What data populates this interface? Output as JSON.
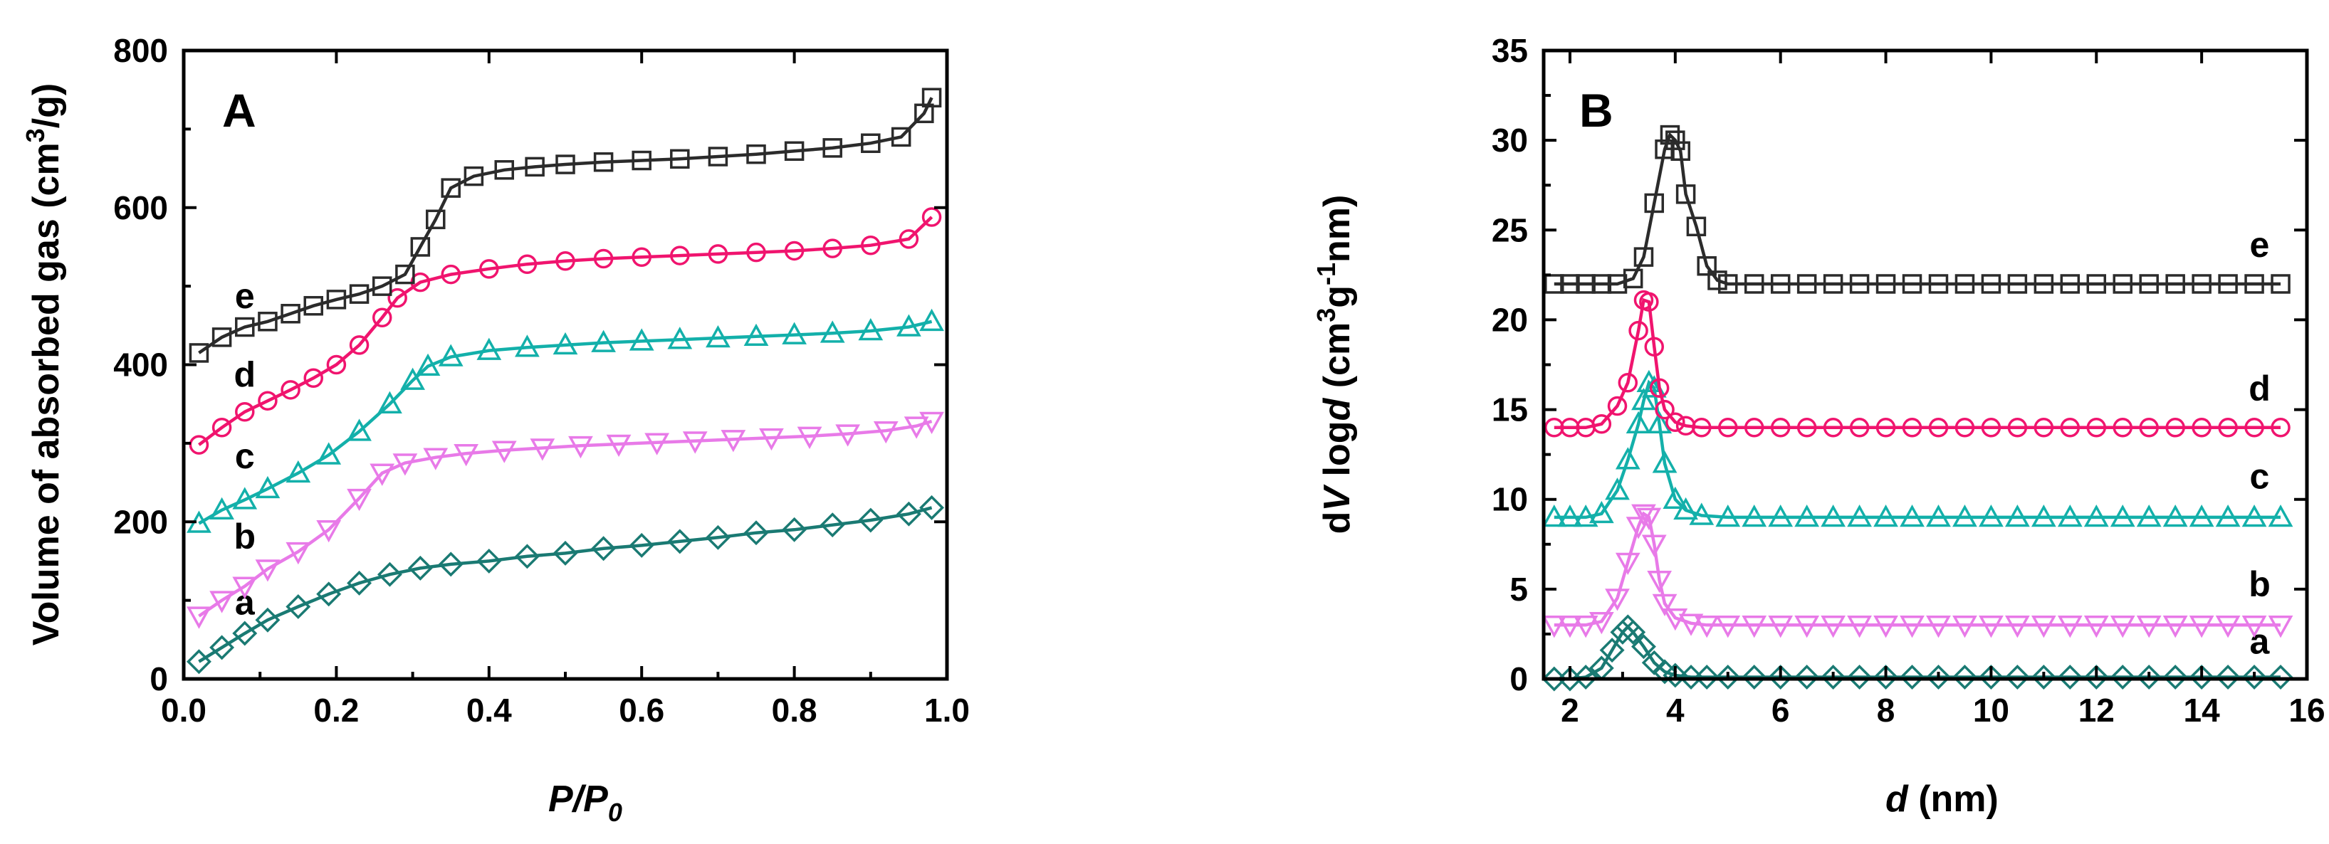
{
  "chart_data": [
    {
      "id": "A",
      "type": "scatter",
      "panel_label": "A",
      "xlabel": "P/P0",
      "xlabel_main": "P/P",
      "xlabel_sub": "0",
      "ylabel": "Volume of absorbed gas (cm3/g)",
      "ylabel_pre": "Volume of absorbed gas (cm",
      "ylabel_sup": "3",
      "ylabel_post": "/g)",
      "xlim": [
        0.0,
        1.0
      ],
      "ylim": [
        0,
        800
      ],
      "xticks": [
        0.0,
        0.2,
        0.4,
        0.6,
        0.8,
        1.0
      ],
      "xtick_labels": [
        "0.0",
        "0.2",
        "0.4",
        "0.6",
        "0.8",
        "1.0"
      ],
      "yticks": [
        0,
        200,
        400,
        600,
        800
      ],
      "ytick_labels": [
        "0",
        "200",
        "400",
        "600",
        "800"
      ],
      "series": [
        {
          "name": "a",
          "label": "a",
          "color": "#1a7a73",
          "marker": "diamond",
          "x": [
            0.02,
            0.05,
            0.08,
            0.11,
            0.15,
            0.19,
            0.23,
            0.27,
            0.31,
            0.35,
            0.4,
            0.45,
            0.5,
            0.55,
            0.6,
            0.65,
            0.7,
            0.75,
            0.8,
            0.85,
            0.9,
            0.95,
            0.98
          ],
          "y": [
            22,
            40,
            58,
            75,
            92,
            108,
            122,
            133,
            141,
            146,
            150,
            156,
            160,
            166,
            170,
            175,
            180,
            186,
            190,
            196,
            202,
            210,
            218
          ],
          "label_at": [
            0.08,
            82
          ]
        },
        {
          "name": "b",
          "label": "b",
          "color": "#e87ae8",
          "marker": "triangle-down",
          "x": [
            0.02,
            0.05,
            0.08,
            0.11,
            0.15,
            0.19,
            0.23,
            0.26,
            0.29,
            0.33,
            0.37,
            0.42,
            0.47,
            0.52,
            0.57,
            0.62,
            0.67,
            0.72,
            0.77,
            0.82,
            0.87,
            0.92,
            0.96,
            0.98
          ],
          "y": [
            80,
            100,
            118,
            140,
            162,
            190,
            230,
            262,
            275,
            282,
            287,
            291,
            294,
            297,
            299,
            301,
            303,
            305,
            307,
            309,
            312,
            316,
            322,
            328
          ],
          "label_at": [
            0.08,
            166
          ]
        },
        {
          "name": "c",
          "label": "c",
          "color": "#13b0aa",
          "marker": "triangle-up",
          "x": [
            0.02,
            0.05,
            0.08,
            0.11,
            0.15,
            0.19,
            0.23,
            0.27,
            0.3,
            0.32,
            0.35,
            0.4,
            0.45,
            0.5,
            0.55,
            0.6,
            0.65,
            0.7,
            0.75,
            0.8,
            0.85,
            0.9,
            0.95,
            0.98
          ],
          "y": [
            198,
            215,
            228,
            242,
            262,
            285,
            315,
            350,
            380,
            398,
            410,
            418,
            422,
            425,
            428,
            430,
            432,
            434,
            436,
            438,
            440,
            443,
            448,
            455
          ],
          "label_at": [
            0.08,
            268
          ]
        },
        {
          "name": "d",
          "label": "d",
          "color": "#f0146e",
          "marker": "circle",
          "x": [
            0.02,
            0.05,
            0.08,
            0.11,
            0.14,
            0.17,
            0.2,
            0.23,
            0.26,
            0.28,
            0.31,
            0.35,
            0.4,
            0.45,
            0.5,
            0.55,
            0.6,
            0.65,
            0.7,
            0.75,
            0.8,
            0.85,
            0.9,
            0.95,
            0.98
          ],
          "y": [
            298,
            320,
            340,
            354,
            368,
            383,
            400,
            425,
            460,
            485,
            505,
            515,
            522,
            528,
            532,
            535,
            537,
            539,
            541,
            543,
            545,
            548,
            552,
            560,
            588
          ],
          "label_at": [
            0.08,
            372
          ]
        },
        {
          "name": "e",
          "label": "e",
          "color": "#2b2b2b",
          "marker": "square",
          "x": [
            0.02,
            0.05,
            0.08,
            0.11,
            0.14,
            0.17,
            0.2,
            0.23,
            0.26,
            0.29,
            0.31,
            0.33,
            0.35,
            0.38,
            0.42,
            0.46,
            0.5,
            0.55,
            0.6,
            0.65,
            0.7,
            0.75,
            0.8,
            0.85,
            0.9,
            0.94,
            0.97,
            0.98
          ],
          "y": [
            415,
            435,
            448,
            455,
            465,
            475,
            483,
            490,
            500,
            515,
            550,
            585,
            625,
            640,
            648,
            652,
            655,
            658,
            660,
            662,
            665,
            668,
            672,
            676,
            682,
            690,
            720,
            740
          ],
          "label_at": [
            0.08,
            472
          ]
        }
      ]
    },
    {
      "id": "B",
      "type": "line",
      "panel_label": "B",
      "xlabel": "d (nm)",
      "xlabel_main": "d",
      "xlabel_post": " (nm)",
      "ylabel": "dV logd (cm3g-1nm)",
      "ylabel_d": "d",
      "ylabel_V": "V",
      "ylabel_log": " log",
      "ylabel_d2": "d",
      "ylabel_paren": " (cm",
      "ylabel_sup3": "3",
      "ylabel_g": "g",
      "ylabel_supm1": "-1",
      "ylabel_nm": "nm)",
      "xlim": [
        1.5,
        16
      ],
      "ylim": [
        0,
        35
      ],
      "xticks": [
        2,
        4,
        6,
        8,
        10,
        12,
        14,
        16
      ],
      "xtick_labels": [
        "2",
        "4",
        "6",
        "8",
        "10",
        "12",
        "14",
        "16"
      ],
      "yticks": [
        0,
        5,
        10,
        15,
        20,
        25,
        30,
        35
      ],
      "ytick_labels": [
        "0",
        "5",
        "10",
        "15",
        "20",
        "25",
        "30",
        "35"
      ],
      "series": [
        {
          "name": "a",
          "label": "a",
          "color": "#1a7a73",
          "marker": "diamond",
          "x": [
            1.7,
            2.0,
            2.3,
            2.6,
            2.8,
            3.0,
            3.1,
            3.2,
            3.4,
            3.6,
            3.8,
            4.0,
            4.3,
            4.6,
            5.0,
            5.5,
            6.0,
            6.5,
            7.0,
            7.5,
            8.0,
            8.5,
            9.0,
            9.5,
            10.0,
            10.5,
            11.0,
            11.5,
            12.0,
            12.5,
            13.0,
            13.5,
            14.0,
            14.5,
            15.0,
            15.5
          ],
          "y": [
            0,
            0,
            0.1,
            0.6,
            1.6,
            2.6,
            2.9,
            2.6,
            1.8,
            0.9,
            0.4,
            0.2,
            0.1,
            0.1,
            0.1,
            0.1,
            0.1,
            0.1,
            0.1,
            0.1,
            0.1,
            0.1,
            0.1,
            0.1,
            0.1,
            0.1,
            0.1,
            0.1,
            0.1,
            0.1,
            0.1,
            0.1,
            0.1,
            0.1,
            0.1,
            0.1
          ],
          "label_at": [
            15.1,
            1.4
          ]
        },
        {
          "name": "b",
          "label": "b",
          "color": "#e87ae8",
          "marker": "triangle-down",
          "x": [
            1.7,
            2.0,
            2.3,
            2.6,
            2.9,
            3.1,
            3.3,
            3.4,
            3.5,
            3.6,
            3.7,
            3.8,
            4.0,
            4.3,
            4.6,
            5.0,
            5.5,
            6.0,
            6.5,
            7.0,
            7.5,
            8.0,
            8.5,
            9.0,
            9.5,
            10.0,
            10.5,
            11.0,
            11.5,
            12.0,
            12.5,
            13.0,
            13.5,
            14.0,
            14.5,
            15.0,
            15.5
          ],
          "y": [
            3,
            3,
            3,
            3.2,
            4.5,
            6.5,
            8.5,
            9.2,
            9.0,
            7.5,
            5.5,
            4.2,
            3.4,
            3.1,
            3,
            3,
            3,
            3,
            3,
            3,
            3,
            3,
            3,
            3,
            3,
            3,
            3,
            3,
            3,
            3,
            3,
            3,
            3,
            3,
            3,
            3,
            3
          ],
          "label_at": [
            15.1,
            4.6
          ]
        },
        {
          "name": "c",
          "label": "c",
          "color": "#13b0aa",
          "marker": "triangle-up",
          "x": [
            1.7,
            2.0,
            2.3,
            2.6,
            2.9,
            3.1,
            3.3,
            3.4,
            3.5,
            3.6,
            3.7,
            3.8,
            4.0,
            4.2,
            4.5,
            5.0,
            5.5,
            6.0,
            6.5,
            7.0,
            7.5,
            8.0,
            8.5,
            9.0,
            9.5,
            10.0,
            10.5,
            11.0,
            11.5,
            12.0,
            12.5,
            13.0,
            13.5,
            14.0,
            14.5,
            15.0,
            15.5
          ],
          "y": [
            9,
            9,
            9,
            9.2,
            10.5,
            12.2,
            14.2,
            15.5,
            16.5,
            16.2,
            14.2,
            12.0,
            10.0,
            9.4,
            9.1,
            9,
            9,
            9,
            9,
            9,
            9,
            9,
            9,
            9,
            9,
            9,
            9,
            9,
            9,
            9,
            9,
            9,
            9,
            9,
            9,
            9,
            9
          ],
          "label_at": [
            15.1,
            10.6
          ]
        },
        {
          "name": "d",
          "label": "d",
          "color": "#f0146e",
          "marker": "circle",
          "x": [
            1.7,
            2.0,
            2.3,
            2.6,
            2.9,
            3.1,
            3.3,
            3.4,
            3.5,
            3.6,
            3.7,
            3.8,
            4.0,
            4.2,
            4.5,
            5.0,
            5.5,
            6.0,
            6.5,
            7.0,
            7.5,
            8.0,
            8.5,
            9.0,
            9.5,
            10.0,
            10.5,
            11.0,
            11.5,
            12.0,
            12.5,
            13.0,
            13.5,
            14.0,
            14.5,
            15.0,
            15.5
          ],
          "y": [
            14,
            14,
            14,
            14.2,
            15.2,
            16.5,
            19.4,
            21.1,
            21.0,
            18.5,
            16.2,
            15.0,
            14.3,
            14.1,
            14,
            14,
            14,
            14,
            14,
            14,
            14,
            14,
            14,
            14,
            14,
            14,
            14,
            14,
            14,
            14,
            14,
            14,
            14,
            14,
            14,
            14,
            14
          ],
          "label_at": [
            15.1,
            15.5
          ]
        },
        {
          "name": "e",
          "label": "e",
          "color": "#2b2b2b",
          "marker": "square",
          "x": [
            1.7,
            2.0,
            2.3,
            2.6,
            2.9,
            3.2,
            3.4,
            3.6,
            3.8,
            3.9,
            4.0,
            4.1,
            4.2,
            4.4,
            4.6,
            4.8,
            5.0,
            5.5,
            6.0,
            6.5,
            7.0,
            7.5,
            8.0,
            8.5,
            9.0,
            9.5,
            10.0,
            10.5,
            11.0,
            11.5,
            12.0,
            12.5,
            13.0,
            13.5,
            14.0,
            14.5,
            15.0,
            15.5
          ],
          "y": [
            22,
            22,
            22,
            22,
            22,
            22.3,
            23.5,
            26.5,
            29.5,
            30.3,
            30.0,
            29.4,
            27.0,
            25.2,
            23.0,
            22.2,
            22,
            22,
            22,
            22,
            22,
            22,
            22,
            22,
            22,
            22,
            22,
            22,
            22,
            22,
            22,
            22,
            22,
            22,
            22,
            22,
            22,
            22
          ],
          "label_at": [
            15.1,
            23.5
          ]
        }
      ]
    }
  ]
}
